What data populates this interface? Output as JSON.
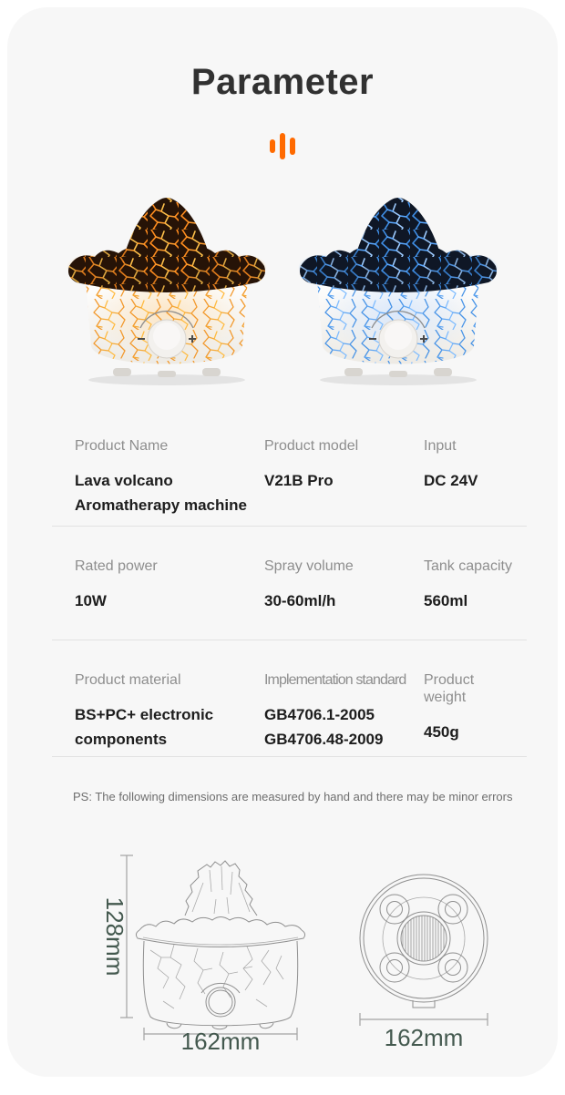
{
  "title": "Parameter",
  "icon": "equalizer-icon",
  "images": {
    "left": "volcano-diffuser-fire-lit",
    "right": "volcano-diffuser-blue-lit"
  },
  "specs": {
    "rows": [
      {
        "cells": [
          {
            "label": "Product Name",
            "value": "Lava volcano Aromatherapy machine"
          },
          {
            "label": "Product model",
            "value": "V21B Pro"
          },
          {
            "label": "Input",
            "value": "DC 24V"
          }
        ]
      },
      {
        "cells": [
          {
            "label": "Rated power",
            "value": "10W"
          },
          {
            "label": "Spray volume",
            "value": "30-60ml/h"
          },
          {
            "label": "Tank capacity",
            "value": "560ml"
          }
        ]
      },
      {
        "cells": [
          {
            "label": "Product material",
            "value": "BS+PC+ electronic components"
          },
          {
            "label": "Implementation standard",
            "value_lines": [
              "GB4706.1-2005",
              "GB4706.48-2009"
            ]
          },
          {
            "label": "Product weight",
            "value": "450g"
          }
        ]
      }
    ]
  },
  "note": "PS: The following dimensions are measured by hand and there may be minor errors",
  "dimensions": {
    "side_view": {
      "height": "128mm",
      "width": "162mm"
    },
    "bottom_view": {
      "width": "162mm"
    }
  },
  "colors": {
    "accent": "#FF6A00",
    "dimension_text": "#44594F",
    "fire_crack": "#FF8C1E",
    "blue_crack": "#3E8EE6",
    "card_background": "#F7F7F7"
  }
}
